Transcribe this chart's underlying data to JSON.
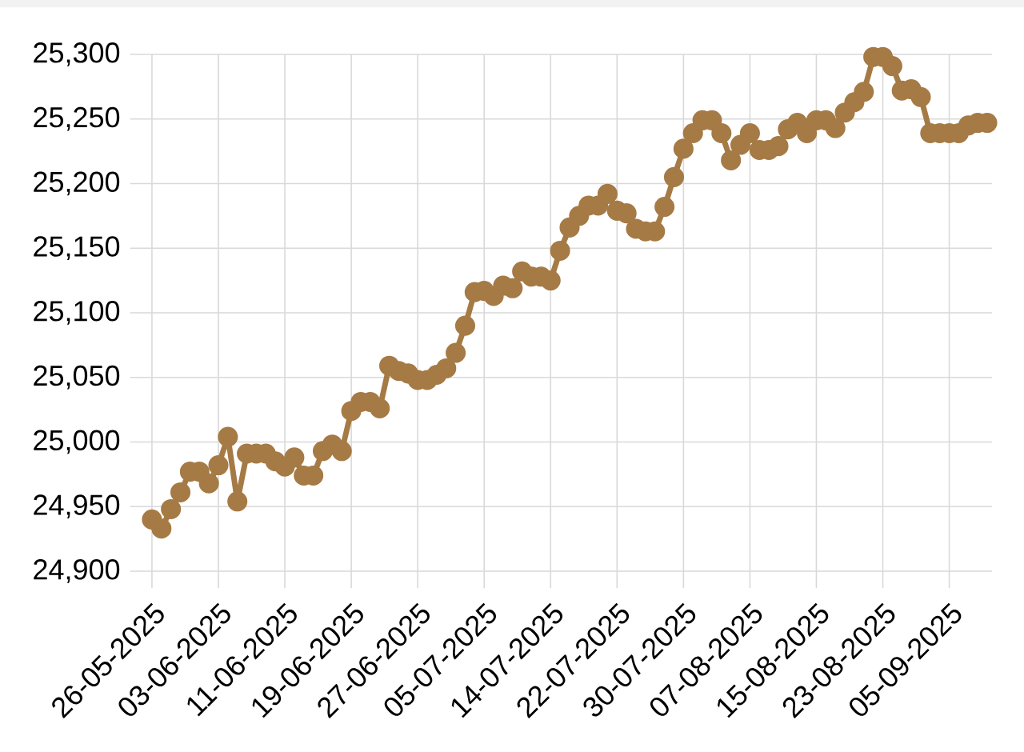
{
  "chart_data": {
    "type": "line",
    "categories": [
      "26-05-2025",
      null,
      null,
      null,
      null,
      null,
      null,
      "03-06-2025",
      null,
      null,
      null,
      null,
      null,
      null,
      "11-06-2025",
      null,
      null,
      null,
      null,
      null,
      null,
      "19-06-2025",
      null,
      null,
      null,
      null,
      null,
      null,
      "27-06-2025",
      null,
      null,
      null,
      null,
      null,
      null,
      "05-07-2025",
      null,
      null,
      null,
      null,
      null,
      null,
      "14-07-2025",
      null,
      null,
      null,
      null,
      null,
      null,
      "22-07-2025",
      null,
      null,
      null,
      null,
      null,
      null,
      "30-07-2025",
      null,
      null,
      null,
      null,
      null,
      null,
      "07-08-2025",
      null,
      null,
      null,
      null,
      null,
      null,
      "15-08-2025",
      null,
      null,
      null,
      null,
      null,
      null,
      "23-08-2025",
      null,
      null,
      null,
      null,
      null,
      null,
      "05-09-2025",
      null,
      null,
      null,
      null
    ],
    "series": [
      {
        "color": "#a57a45",
        "values": [
          24940,
          24933,
          24948,
          24961,
          24977,
          24977,
          24968,
          24982,
          25004,
          24954,
          24991,
          24991,
          24991,
          24985,
          24981,
          24988,
          24974,
          24974,
          24993,
          24998,
          24993,
          25024,
          25031,
          25031,
          25026,
          25059,
          25055,
          25053,
          25048,
          25048,
          25052,
          25057,
          25069,
          25090,
          25116,
          25117,
          25113,
          25121,
          25119,
          25132,
          25128,
          25128,
          25125,
          25148,
          25166,
          25175,
          25183,
          25183,
          25192,
          25179,
          25177,
          25165,
          25163,
          25163,
          25182,
          25205,
          25227,
          25239,
          25249,
          25249,
          25239,
          25218,
          25230,
          25239,
          25226,
          25226,
          25229,
          25242,
          25247,
          25239,
          25249,
          25249,
          25243,
          25255,
          25263,
          25271,
          25298,
          25298,
          25291,
          25272,
          25273,
          25267,
          25239,
          25239,
          25239,
          25239,
          25245,
          25247,
          25247
        ]
      }
    ],
    "ylim": [
      24900,
      25300
    ],
    "yticks": [
      {
        "value": 24900,
        "label": "24,900"
      },
      {
        "value": 24950,
        "label": "24,950"
      },
      {
        "value": 25000,
        "label": "25,000"
      },
      {
        "value": 25050,
        "label": "25,050"
      },
      {
        "value": 25100,
        "label": "25,100"
      },
      {
        "value": 25150,
        "label": "25,150"
      },
      {
        "value": 25200,
        "label": "25,200"
      },
      {
        "value": 25250,
        "label": "25,250"
      },
      {
        "value": 25300,
        "label": "25,300"
      }
    ],
    "grid": true,
    "marker": "circle",
    "line_style": "solid"
  }
}
